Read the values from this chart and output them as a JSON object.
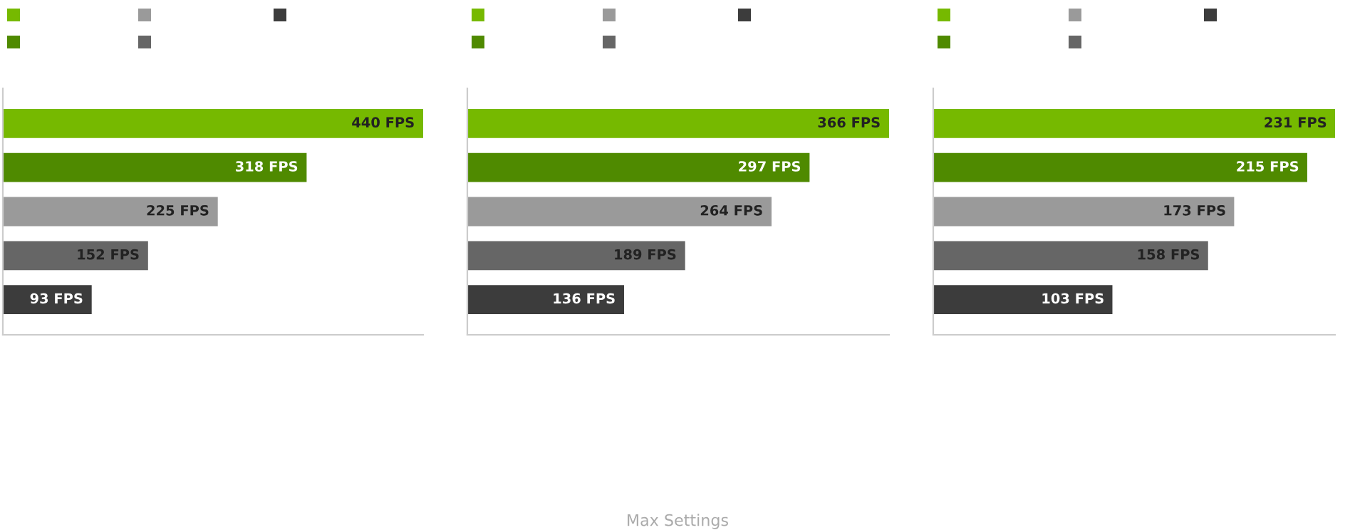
{
  "chart_data": [
    {
      "type": "bar",
      "orientation": "horizontal",
      "categories": [
        null,
        null,
        null,
        null,
        null
      ],
      "values": [
        440,
        318,
        225,
        152,
        93
      ],
      "value_labels": [
        "440 FPS",
        "318 FPS",
        "225 FPS",
        "152 FPS",
        "93 FPS"
      ],
      "colors": [
        "#76b900",
        "#4f8a00",
        "#9a9a9a",
        "#666666",
        "#3c3c3c"
      ]
    },
    {
      "type": "bar",
      "orientation": "horizontal",
      "categories": [
        null,
        null,
        null,
        null,
        null
      ],
      "values": [
        366,
        297,
        264,
        189,
        136
      ],
      "value_labels": [
        "366 FPS",
        "297 FPS",
        "264 FPS",
        "189 FPS",
        "136 FPS"
      ],
      "colors": [
        "#76b900",
        "#4f8a00",
        "#9a9a9a",
        "#666666",
        "#3c3c3c"
      ]
    },
    {
      "type": "bar",
      "orientation": "horizontal",
      "categories": [
        null,
        null,
        null,
        null,
        null
      ],
      "values": [
        231,
        215,
        173,
        158,
        103
      ],
      "value_labels": [
        "231 FPS",
        "215 FPS",
        "173 FPS",
        "158 FPS",
        "103 FPS"
      ],
      "colors": [
        "#76b900",
        "#4f8a00",
        "#9a9a9a",
        "#666666",
        "#3c3c3c"
      ],
      "annotations": [
        "Max Settings"
      ]
    }
  ]
}
